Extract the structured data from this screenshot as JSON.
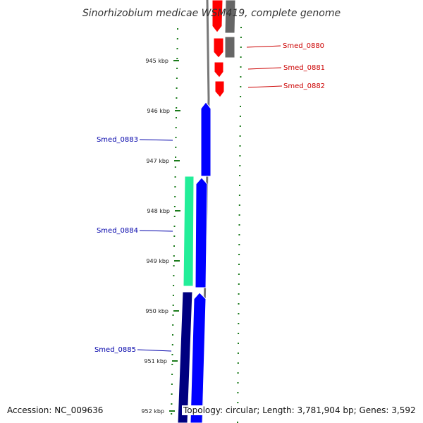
{
  "title": "Sinorhizobium medicae WSM419, complete genome",
  "accession": "Accession: NC_009636",
  "topology": "Topology: circular; Length: 3,781,904 bp; Genes: 3,592",
  "scale_labels": [
    "945 kbp",
    "946 kbp",
    "947 kbp",
    "948 kbp",
    "949 kbp",
    "950 kbp",
    "951 kbp",
    "952 kbp"
  ],
  "genes": [
    {
      "label": "Smed_0880",
      "color": "#cc0000",
      "strand": "forward"
    },
    {
      "label": "Smed_0881",
      "color": "#cc0000",
      "strand": "forward"
    },
    {
      "label": "Smed_0882",
      "color": "#cc0000",
      "strand": "forward"
    },
    {
      "label": "Smed_0883",
      "color": "#0000aa",
      "strand": "reverse"
    },
    {
      "label": "Smed_0884",
      "color": "#0000aa",
      "strand": "reverse"
    },
    {
      "label": "Smed_0885",
      "color": "#0000aa",
      "strand": "reverse"
    }
  ],
  "colors": {
    "forward_cds": "#ff0000",
    "reverse_cds": "#0000ff",
    "dark_cds": "#000080",
    "other_feature": "#22ee99",
    "backbone": "#777777",
    "scale": "#1a7a1a"
  }
}
